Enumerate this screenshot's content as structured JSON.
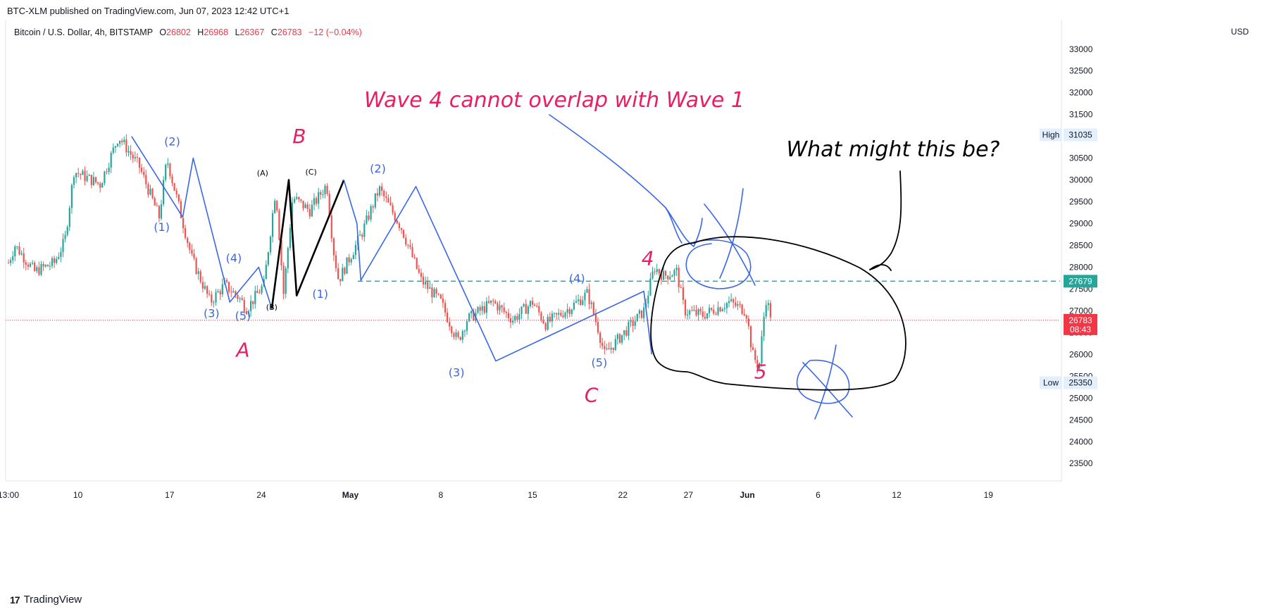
{
  "header": {
    "published": "BTC-XLM published on TradingView.com, Jun 07, 2023 12:42 UTC+1",
    "symbol": "Bitcoin / U.S. Dollar, 4h, BITSTAMP",
    "o_label": "O",
    "o_value": "26802",
    "h_label": "H",
    "h_value": "26968",
    "l_label": "L",
    "l_value": "26367",
    "c_label": "C",
    "c_value": "26783",
    "change": "−12 (−0.04%)",
    "currency": "USD"
  },
  "footer": {
    "brand": "TradingView",
    "logo": "tradingview-logo-icon"
  },
  "colors": {
    "up": "#26a69a",
    "down": "#ef5350",
    "wave_blue": "#3a67e6",
    "annotation_pink": "#e91e63",
    "level_line": "#26a69a",
    "last_price": "#f23645"
  },
  "chart_data": {
    "type": "candlestick",
    "y_axis": {
      "min": 23100,
      "max": 33400,
      "ticks": [
        23500,
        24000,
        24500,
        25000,
        25500,
        26000,
        26500,
        27000,
        27500,
        28000,
        28500,
        29000,
        29500,
        30000,
        30500,
        31000,
        31500,
        32000,
        32500,
        33000
      ]
    },
    "x_axis": {
      "ticks": [
        "13:00",
        "10",
        "17",
        "24",
        "May",
        "8",
        "15",
        "22",
        "27",
        "Jun",
        "6",
        "12",
        "19"
      ]
    },
    "price_badges": [
      {
        "label": "High",
        "value": "31035"
      },
      {
        "label": "",
        "value": "27679"
      },
      {
        "label": "",
        "value": "26783",
        "sub": "08:43"
      },
      {
        "label": "Low",
        "value": "25350"
      }
    ],
    "horizontal_level": 27679,
    "last_price": 26783,
    "anchors": [
      {
        "d": 0,
        "p": 28100
      },
      {
        "d": 0.5,
        "p": 28500
      },
      {
        "d": 2,
        "p": 27900
      },
      {
        "d": 3.5,
        "p": 28100
      },
      {
        "d": 4.3,
        "p": 28600
      },
      {
        "d": 5,
        "p": 30200
      },
      {
        "d": 7,
        "p": 29900
      },
      {
        "d": 8.4,
        "p": 31000
      },
      {
        "d": 10,
        "p": 30300
      },
      {
        "d": 11.5,
        "p": 29150
      },
      {
        "d": 12.1,
        "p": 30480
      },
      {
        "d": 14,
        "p": 28200
      },
      {
        "d": 15.4,
        "p": 27200
      },
      {
        "d": 16.5,
        "p": 27600
      },
      {
        "d": 17.6,
        "p": 27300
      },
      {
        "d": 18.2,
        "p": 27050
      },
      {
        "d": 19.5,
        "p": 27600
      },
      {
        "d": 20.4,
        "p": 29800
      },
      {
        "d": 21,
        "p": 27400
      },
      {
        "d": 21.7,
        "p": 29600
      },
      {
        "d": 23,
        "p": 29300
      },
      {
        "d": 24.3,
        "p": 29900
      },
      {
        "d": 24.8,
        "p": 28400
      },
      {
        "d": 25.2,
        "p": 27700
      },
      {
        "d": 27,
        "p": 28800
      },
      {
        "d": 28.3,
        "p": 29800
      },
      {
        "d": 30,
        "p": 28900
      },
      {
        "d": 31.5,
        "p": 27700
      },
      {
        "d": 33,
        "p": 27200
      },
      {
        "d": 34.3,
        "p": 26300
      },
      {
        "d": 35,
        "p": 26800
      },
      {
        "d": 37,
        "p": 27200
      },
      {
        "d": 38.5,
        "p": 26800
      },
      {
        "d": 40,
        "p": 27200
      },
      {
        "d": 41,
        "p": 26700
      },
      {
        "d": 43,
        "p": 27100
      },
      {
        "d": 44.2,
        "p": 27400
      },
      {
        "d": 45,
        "p": 26600
      },
      {
        "d": 45.5,
        "p": 26000
      },
      {
        "d": 47,
        "p": 26500
      },
      {
        "d": 48.5,
        "p": 27000
      },
      {
        "d": 49.3,
        "p": 28000
      },
      {
        "d": 50,
        "p": 27800
      },
      {
        "d": 51,
        "p": 27900
      },
      {
        "d": 51.6,
        "p": 27000
      },
      {
        "d": 53,
        "p": 26900
      },
      {
        "d": 55,
        "p": 27200
      },
      {
        "d": 56.3,
        "p": 27000
      },
      {
        "d": 56.8,
        "p": 26000
      },
      {
        "d": 57.3,
        "p": 25700
      },
      {
        "d": 57.8,
        "p": 27300
      },
      {
        "d": 58.3,
        "p": 26783
      }
    ]
  },
  "annotations": {
    "title_note": "Wave 4 cannot overlap with Wave 1",
    "question": "What might this be?",
    "big_labels": [
      {
        "t": "A",
        "d": 17.9,
        "p": 25950
      },
      {
        "t": "B",
        "d": 22.2,
        "p": 30850
      },
      {
        "t": "C",
        "d": 44.5,
        "p": 24920
      },
      {
        "t": "4",
        "d": 48.8,
        "p": 28050
      },
      {
        "t": "5",
        "d": 57.4,
        "p": 25450
      }
    ],
    "blue_labels": [
      {
        "t": "(1)",
        "d": 11.7,
        "p": 28830
      },
      {
        "t": "(2)",
        "d": 12.5,
        "p": 30790
      },
      {
        "t": "(3)",
        "d": 15.5,
        "p": 26850
      },
      {
        "t": "(4)",
        "d": 17.2,
        "p": 28120
      },
      {
        "t": "(5)",
        "d": 17.9,
        "p": 26800
      },
      {
        "t": "(1)",
        "d": 23.8,
        "p": 27300
      },
      {
        "t": "(2)",
        "d": 28.2,
        "p": 30170
      },
      {
        "t": "(3)",
        "d": 34.2,
        "p": 25500
      },
      {
        "t": "(4)",
        "d": 43.4,
        "p": 27650
      },
      {
        "t": "(5)",
        "d": 45.1,
        "p": 25720
      }
    ],
    "black_labels": [
      {
        "t": "(A)",
        "d": 19.4,
        "p": 30100
      },
      {
        "t": "(B)",
        "d": 20.1,
        "p": 27020
      },
      {
        "t": "(C)",
        "d": 23.1,
        "p": 30120
      }
    ]
  }
}
